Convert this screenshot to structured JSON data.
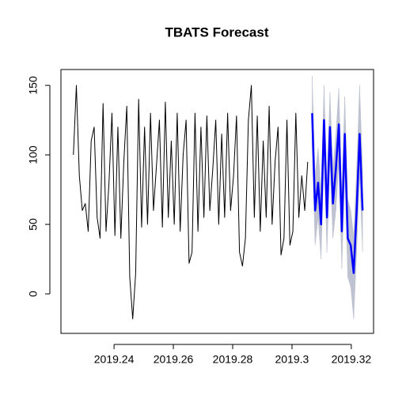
{
  "chart_data": {
    "type": "line",
    "title": "TBATS Forecast",
    "xlim": [
      2019.2221,
      2019.3275
    ],
    "ylim": [
      -28.4,
      161.4
    ],
    "xticks": [
      2019.24,
      2019.26,
      2019.28,
      2019.3,
      2019.32
    ],
    "yticks": [
      0,
      50,
      100,
      150
    ],
    "interval_color": "#bec2d1",
    "series": [
      {
        "color": "#000000",
        "x": [
          2019.2263,
          2019.2273,
          2019.2283,
          2019.2293,
          2019.2303,
          2019.2313,
          2019.2323,
          2019.2333,
          2019.2343,
          2019.2353,
          2019.2363,
          2019.2373,
          2019.2383,
          2019.2393,
          2019.2403,
          2019.2413,
          2019.2423,
          2019.2433,
          2019.2443,
          2019.2453,
          2019.2463,
          2019.2473,
          2019.2483,
          2019.2493,
          2019.2503,
          2019.2513,
          2019.2523,
          2019.2533,
          2019.2543,
          2019.2553,
          2019.2563,
          2019.2573,
          2019.2583,
          2019.2593,
          2019.2603,
          2019.2613,
          2019.2623,
          2019.2633,
          2019.2643,
          2019.2653,
          2019.2663,
          2019.2673,
          2019.2683,
          2019.2693,
          2019.2703,
          2019.2713,
          2019.2723,
          2019.2733,
          2019.2743,
          2019.2753,
          2019.2763,
          2019.2773,
          2019.2783,
          2019.2793,
          2019.2803,
          2019.2813,
          2019.2823,
          2019.2833,
          2019.2843,
          2019.2853,
          2019.2863,
          2019.2873,
          2019.2883,
          2019.2893,
          2019.2903,
          2019.2913,
          2019.2923,
          2019.2933,
          2019.2943,
          2019.2953,
          2019.2963,
          2019.2973,
          2019.2983,
          2019.2993,
          2019.3003,
          2019.3013,
          2019.3023,
          2019.3033,
          2019.3043,
          2019.3053
        ],
        "values": [
          100,
          150,
          85,
          60,
          65,
          45,
          110,
          120,
          55,
          40,
          137,
          45,
          80,
          130,
          42,
          120,
          40,
          95,
          135,
          12,
          -18,
          15,
          140,
          48,
          120,
          50,
          130,
          60,
          92,
          125,
          48,
          138,
          55,
          110,
          50,
          130,
          45,
          100,
          125,
          22,
          30,
          130,
          45,
          120,
          55,
          128,
          60,
          90,
          125,
          50,
          115,
          55,
          130,
          60,
          85,
          128,
          30,
          20,
          40,
          125,
          150,
          55,
          128,
          45,
          110,
          55,
          135,
          50,
          95,
          120,
          28,
          40,
          125,
          35,
          45,
          130,
          55,
          85,
          60,
          95
        ]
      },
      {
        "color": "#0000ff",
        "x": [
          2019.3068,
          2019.3078,
          2019.3088,
          2019.3098,
          2019.3108,
          2019.3118,
          2019.3128,
          2019.3138,
          2019.3148,
          2019.3158,
          2019.3168,
          2019.3178,
          2019.3188,
          2019.3198,
          2019.3208,
          2019.3218,
          2019.3228,
          2019.3238
        ],
        "values": [
          130,
          60,
          80,
          50,
          125,
          55,
          120,
          65,
          90,
          122,
          45,
          115,
          40,
          35,
          15,
          60,
          115,
          60
        ],
        "lower": [
          105,
          35,
          55,
          25,
          100,
          30,
          95,
          40,
          60,
          95,
          18,
          88,
          12,
          5,
          -18,
          30,
          85,
          30
        ],
        "upper": [
          157,
          85,
          105,
          75,
          150,
          80,
          145,
          90,
          115,
          148,
          72,
          142,
          68,
          60,
          42,
          90,
          150,
          90
        ]
      }
    ]
  }
}
